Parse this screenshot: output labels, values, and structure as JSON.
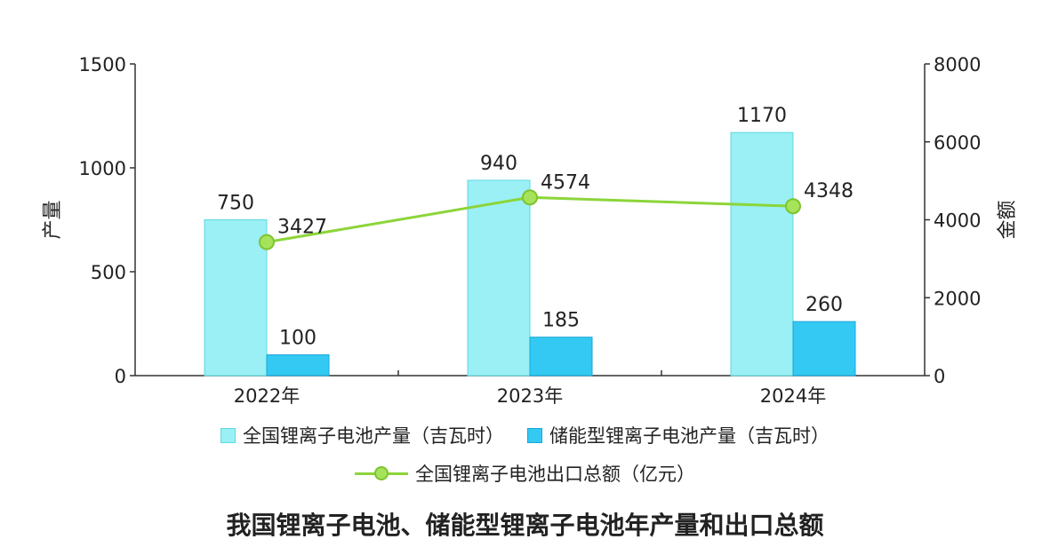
{
  "chart_data": {
    "type": "bar",
    "title": "我国锂离子电池、储能型锂离子电池年产量和出口总额",
    "categories": [
      "2022年",
      "2023年",
      "2024年"
    ],
    "ylabel_left": "产量",
    "ylabel_right": "金额",
    "ylim_left": [
      0,
      1500
    ],
    "yticks_left": [
      0,
      500,
      1000,
      1500
    ],
    "ylim_right": [
      0,
      8000
    ],
    "yticks_right": [
      0,
      2000,
      4000,
      6000,
      8000
    ],
    "grid": false,
    "legend_position": "bottom",
    "series": [
      {
        "name": "全国锂离子电池产量（吉瓦时）",
        "type": "bar",
        "axis": "left",
        "color": "#9af0f4",
        "values": [
          750,
          940,
          1170
        ]
      },
      {
        "name": "储能型锂离子电池产量（吉瓦时）",
        "type": "bar",
        "axis": "left",
        "color": "#33c9f2",
        "values": [
          100,
          185,
          260
        ]
      },
      {
        "name": "全国锂离子电池出口总额（亿元）",
        "type": "line",
        "axis": "right",
        "color": "#8cd53a",
        "values": [
          3427,
          4574,
          4348
        ]
      }
    ]
  }
}
